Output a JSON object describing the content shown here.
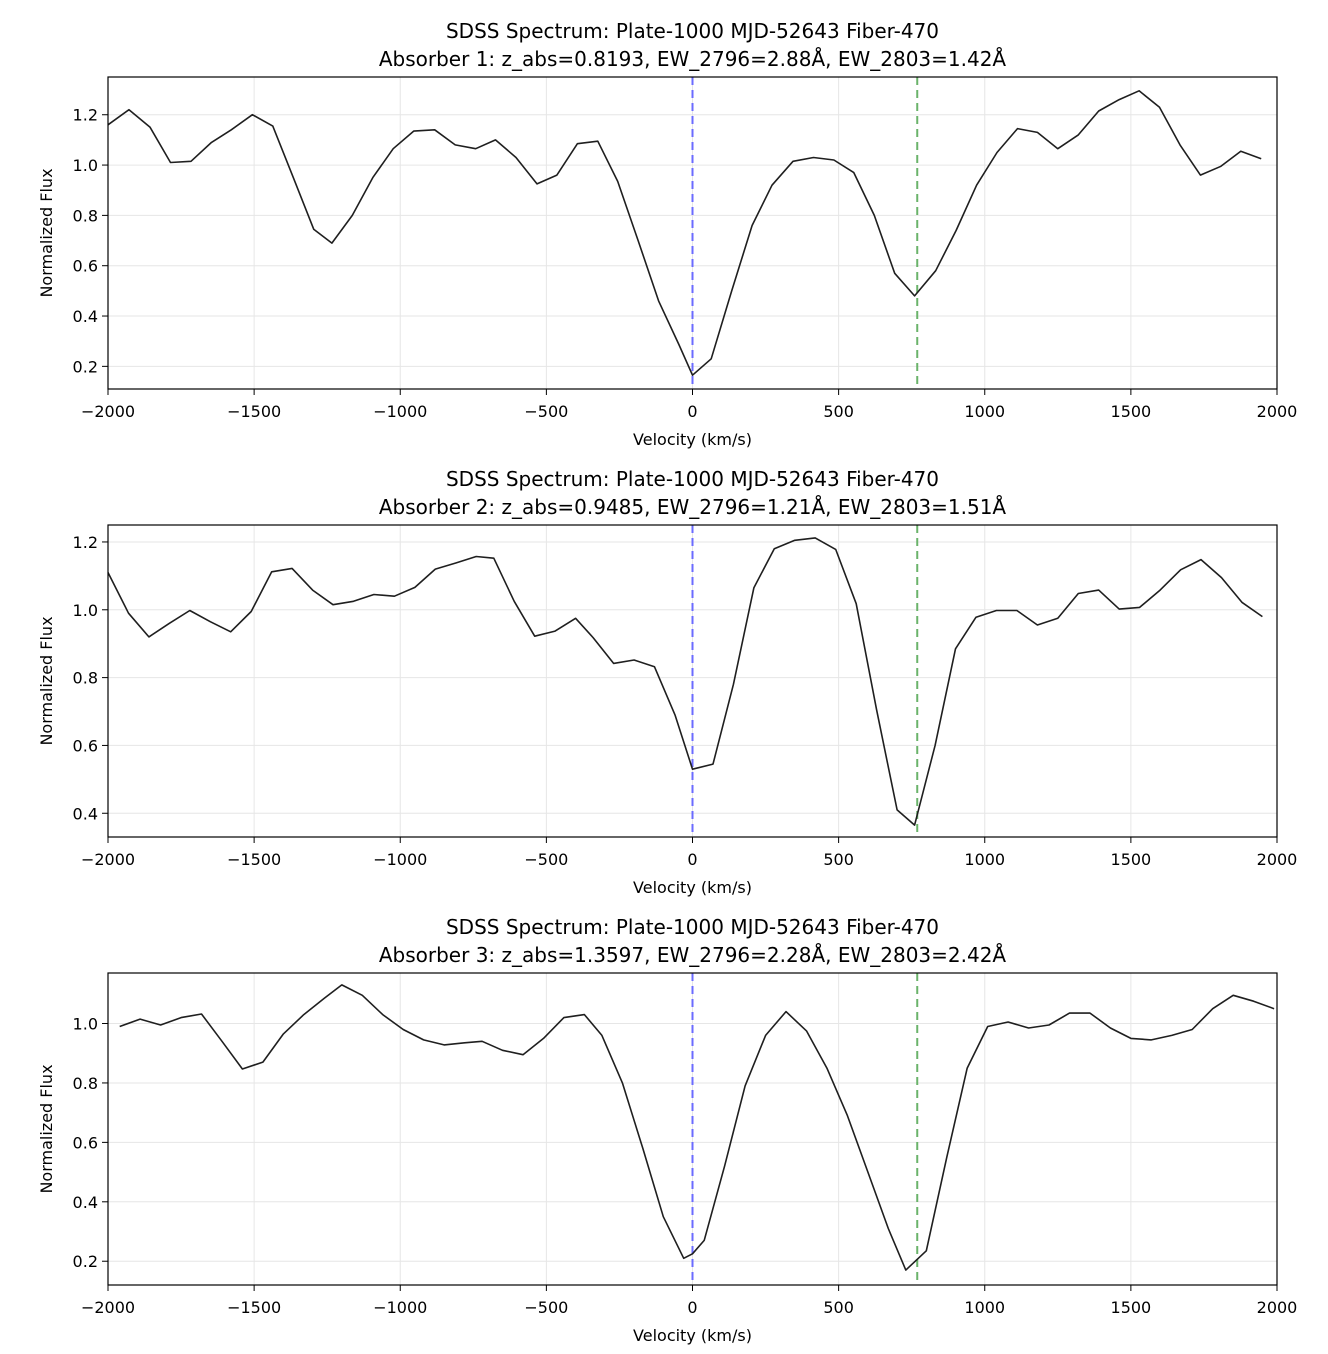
{
  "colors": {
    "line": "#1f1f1f",
    "line_2796": "#6b6bff",
    "line_2803": "#6ab36a",
    "grid": "#e6e6e6",
    "axes": "#000000"
  },
  "chart_data": [
    {
      "type": "line",
      "title": "SDSS Spectrum: Plate-1000 MJD-52643 Fiber-470",
      "subtitle": "Absorber 1: z_abs=0.8193, EW_2796=2.88Å, EW_2803=1.42Å",
      "xlabel": "Velocity (km/s)",
      "ylabel": "Normalized Flux",
      "xlim": [
        -2000,
        2000
      ],
      "ylim": [
        0.11,
        1.35
      ],
      "xticks": [
        -2000,
        -1500,
        -1000,
        -500,
        0,
        500,
        1000,
        1500,
        2000
      ],
      "xtick_labels": [
        "−2000",
        "−1500",
        "−1000",
        "−500",
        "0",
        "500",
        "1000",
        "1500",
        "2000"
      ],
      "yticks": [
        0.2,
        0.4,
        0.6,
        0.8,
        1.0,
        1.2
      ],
      "ytick_labels": [
        "0.2",
        "0.4",
        "0.6",
        "0.8",
        "1.0",
        "1.2"
      ],
      "grid": true,
      "reference_lines": [
        {
          "x": 0,
          "style": "dashed",
          "color": "line_2796"
        },
        {
          "x": 769,
          "style": "dashed",
          "color": "line_2803"
        }
      ],
      "x": [
        -2000,
        -1928,
        -1856,
        -1786,
        -1716,
        -1646,
        -1578,
        -1506,
        -1436,
        -1366,
        -1296,
        -1234,
        -1164,
        -1094,
        -1024,
        -954,
        -882,
        -812,
        -742,
        -674,
        -604,
        -532,
        -464,
        -394,
        -324,
        -256,
        -186,
        -116,
        -46,
        0,
        64,
        134,
        204,
        272,
        344,
        414,
        484,
        552,
        622,
        692,
        760,
        832,
        902,
        972,
        1042,
        1112,
        1180,
        1250,
        1320,
        1390,
        1460,
        1528,
        1598,
        1668,
        1738,
        1808,
        1876,
        1946
      ],
      "y": [
        1.16,
        1.22,
        1.15,
        1.01,
        1.015,
        1.09,
        1.14,
        1.2,
        1.155,
        0.95,
        0.745,
        0.69,
        0.8,
        0.95,
        1.065,
        1.135,
        1.14,
        1.08,
        1.065,
        1.1,
        1.03,
        0.925,
        0.96,
        1.085,
        1.095,
        0.935,
        0.7,
        0.46,
        0.285,
        0.165,
        0.23,
        0.5,
        0.76,
        0.92,
        1.015,
        1.03,
        1.02,
        0.97,
        0.8,
        0.57,
        0.48,
        0.58,
        0.74,
        0.92,
        1.05,
        1.145,
        1.13,
        1.065,
        1.12,
        1.215,
        1.26,
        1.295,
        1.23,
        1.08,
        0.96,
        0.995,
        1.055,
        1.025
      ]
    },
    {
      "type": "line",
      "title": "SDSS Spectrum: Plate-1000 MJD-52643 Fiber-470",
      "subtitle": "Absorber 2: z_abs=0.9485, EW_2796=1.21Å, EW_2803=1.51Å",
      "xlabel": "Velocity (km/s)",
      "ylabel": "Normalized Flux",
      "xlim": [
        -2000,
        2000
      ],
      "ylim": [
        0.33,
        1.25
      ],
      "xticks": [
        -2000,
        -1500,
        -1000,
        -500,
        0,
        500,
        1000,
        1500,
        2000
      ],
      "xtick_labels": [
        "−2000",
        "−1500",
        "−1000",
        "−500",
        "0",
        "500",
        "1000",
        "1500",
        "2000"
      ],
      "yticks": [
        0.4,
        0.6,
        0.8,
        1.0,
        1.2
      ],
      "ytick_labels": [
        "0.4",
        "0.6",
        "0.8",
        "1.0",
        "1.2"
      ],
      "grid": true,
      "reference_lines": [
        {
          "x": 0,
          "style": "dashed",
          "color": "line_2796"
        },
        {
          "x": 769,
          "style": "dashed",
          "color": "line_2803"
        }
      ],
      "x": [
        -2000,
        -1930,
        -1860,
        -1790,
        -1720,
        -1650,
        -1580,
        -1510,
        -1440,
        -1370,
        -1300,
        -1230,
        -1160,
        -1090,
        -1020,
        -950,
        -880,
        -810,
        -740,
        -680,
        -610,
        -540,
        -470,
        -400,
        -340,
        -270,
        -200,
        -130,
        -60,
        0,
        70,
        140,
        210,
        280,
        350,
        420,
        490,
        560,
        630,
        700,
        760,
        830,
        900,
        970,
        1040,
        1110,
        1180,
        1250,
        1320,
        1390,
        1460,
        1530,
        1600,
        1670,
        1740,
        1810,
        1880,
        1950
      ],
      "y": [
        1.11,
        0.99,
        0.92,
        0.96,
        0.998,
        0.965,
        0.935,
        0.995,
        1.112,
        1.122,
        1.058,
        1.015,
        1.025,
        1.045,
        1.04,
        1.066,
        1.12,
        1.138,
        1.157,
        1.152,
        1.025,
        0.922,
        0.937,
        0.975,
        0.918,
        0.842,
        0.852,
        0.832,
        0.69,
        0.53,
        0.545,
        0.78,
        1.065,
        1.18,
        1.205,
        1.212,
        1.178,
        1.018,
        0.705,
        0.41,
        0.365,
        0.6,
        0.885,
        0.978,
        0.998,
        0.998,
        0.955,
        0.975,
        1.048,
        1.058,
        1.002,
        1.007,
        1.058,
        1.118,
        1.148,
        1.095,
        1.022,
        0.98
      ]
    },
    {
      "type": "line",
      "title": "SDSS Spectrum: Plate-1000 MJD-52643 Fiber-470",
      "subtitle": "Absorber 3: z_abs=1.3597, EW_2796=2.28Å, EW_2803=2.42Å",
      "xlabel": "Velocity (km/s)",
      "ylabel": "Normalized Flux",
      "xlim": [
        -2000,
        2000
      ],
      "ylim": [
        0.12,
        1.17
      ],
      "xticks": [
        -2000,
        -1500,
        -1000,
        -500,
        0,
        500,
        1000,
        1500,
        2000
      ],
      "xtick_labels": [
        "−2000",
        "−1500",
        "−1000",
        "−500",
        "0",
        "500",
        "1000",
        "1500",
        "2000"
      ],
      "yticks": [
        0.2,
        0.4,
        0.6,
        0.8,
        1.0
      ],
      "ytick_labels": [
        "0.2",
        "0.4",
        "0.6",
        "0.8",
        "1.0"
      ],
      "grid": true,
      "reference_lines": [
        {
          "x": 0,
          "style": "dashed",
          "color": "line_2796"
        },
        {
          "x": 769,
          "style": "dashed",
          "color": "line_2803"
        }
      ],
      "x": [
        -1960,
        -1890,
        -1820,
        -1750,
        -1680,
        -1610,
        -1540,
        -1470,
        -1400,
        -1330,
        -1260,
        -1200,
        -1130,
        -1060,
        -990,
        -920,
        -850,
        -780,
        -720,
        -650,
        -580,
        -510,
        -440,
        -370,
        -310,
        -240,
        -170,
        -100,
        -30,
        0,
        40,
        110,
        180,
        250,
        320,
        390,
        460,
        530,
        600,
        670,
        730,
        800,
        870,
        940,
        1010,
        1080,
        1150,
        1220,
        1290,
        1360,
        1430,
        1500,
        1570,
        1640,
        1710,
        1780,
        1850,
        1920,
        1990
      ],
      "y": [
        0.99,
        1.015,
        0.995,
        1.02,
        1.032,
        0.94,
        0.847,
        0.87,
        0.965,
        1.03,
        1.085,
        1.13,
        1.095,
        1.03,
        0.98,
        0.945,
        0.928,
        0.935,
        0.94,
        0.91,
        0.895,
        0.95,
        1.02,
        1.03,
        0.96,
        0.8,
        0.58,
        0.35,
        0.21,
        0.225,
        0.27,
        0.52,
        0.79,
        0.96,
        1.04,
        0.975,
        0.85,
        0.69,
        0.5,
        0.31,
        0.17,
        0.235,
        0.55,
        0.85,
        0.99,
        1.005,
        0.985,
        0.995,
        1.035,
        1.035,
        0.985,
        0.95,
        0.945,
        0.96,
        0.98,
        1.05,
        1.095,
        1.075,
        1.05
      ]
    }
  ]
}
